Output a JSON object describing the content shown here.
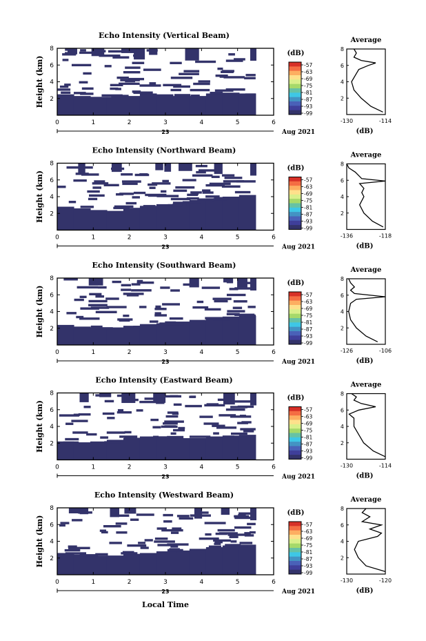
{
  "page": {
    "xlabel": "Local Time",
    "date_label_day": "23",
    "date_label_month": "Aug 2021"
  },
  "colorbar": {
    "unit": "(dB)",
    "tick_labels": [
      "-57",
      "-63",
      "-69",
      "-75",
      "-81",
      "-87",
      "-93",
      "-99"
    ],
    "colors": [
      "#d73027",
      "#f46d43",
      "#fdae61",
      "#fee08b",
      "#d9ef8b",
      "#a6d96a",
      "#66c2a5",
      "#3ec7e6",
      "#4393c3",
      "#4a61b8",
      "#3f3f9a",
      "#33336a"
    ]
  },
  "chart_data": [
    {
      "type": "heatmap",
      "title": "Echo Intensity (Vertical Beam)",
      "xlabel": "",
      "ylabel": "Height (km)",
      "xlim": [
        0,
        6
      ],
      "ylim": [
        0,
        8
      ],
      "x_ticks": [
        0,
        1,
        2,
        3,
        4,
        5,
        6
      ],
      "y_ticks": [
        2,
        4,
        6,
        8
      ],
      "fill_color": "#33336a",
      "data_end_hour": 5.5,
      "solid_layer_top_km": [
        2.5,
        2.3,
        2.2,
        2.2,
        2.3,
        2.6,
        2.5,
        2.3,
        2.3,
        2.6,
        2.7,
        2.6
      ],
      "average_profile": {
        "title": "Average",
        "xlabel": "(dB)",
        "xlim": [
          -130,
          -114
        ],
        "x_ticks": [
          "-130",
          "-114"
        ],
        "height_km": [
          0.3,
          1,
          2,
          3,
          4,
          5,
          5.5,
          6,
          6.3,
          6.6,
          7,
          7.5,
          8
        ],
        "db": [
          -115,
          -120,
          -124,
          -127,
          -128,
          -126,
          -125,
          -121,
          -118,
          -124,
          -127,
          -126,
          -127
        ]
      }
    },
    {
      "type": "heatmap",
      "title": "Echo Intensity (Northward Beam)",
      "xlabel": "",
      "ylabel": "Height (km)",
      "xlim": [
        0,
        6
      ],
      "ylim": [
        0,
        8
      ],
      "x_ticks": [
        0,
        1,
        2,
        3,
        4,
        5,
        6
      ],
      "y_ticks": [
        2,
        4,
        6,
        8
      ],
      "fill_color": "#33336a",
      "data_end_hour": 5.5,
      "solid_layer_top_km": [
        2.8,
        2.6,
        2.4,
        2.3,
        2.6,
        2.9,
        3.1,
        3.4,
        3.6,
        3.8,
        4.0,
        4.2
      ],
      "average_profile": {
        "title": "Average",
        "xlabel": "(dB)",
        "xlim": [
          -136,
          -118
        ],
        "x_ticks": [
          "-136",
          "-118"
        ],
        "height_km": [
          0.3,
          1,
          2,
          3,
          4,
          4.5,
          5,
          5.6,
          5.9,
          6.2,
          7,
          7.5,
          8
        ],
        "db": [
          -119,
          -124,
          -128,
          -130,
          -128,
          -129,
          -128,
          -130,
          -118,
          -129,
          -132,
          -135,
          -136
        ]
      }
    },
    {
      "type": "heatmap",
      "title": "Echo Intensity (Southward Beam)",
      "xlabel": "",
      "ylabel": "Height (km)",
      "xlim": [
        0,
        6
      ],
      "ylim": [
        0,
        8
      ],
      "x_ticks": [
        0,
        1,
        2,
        3,
        4,
        5,
        6
      ],
      "y_ticks": [
        2,
        4,
        6,
        8
      ],
      "fill_color": "#33336a",
      "data_end_hour": 5.5,
      "solid_layer_top_km": [
        2.4,
        2.2,
        2.1,
        2.1,
        2.3,
        2.5,
        2.6,
        2.8,
        3.0,
        3.2,
        3.4,
        3.5
      ],
      "average_profile": {
        "title": "Average",
        "xlabel": "(dB)",
        "xlim": [
          -126,
          -106
        ],
        "x_ticks": [
          "-126",
          "-106"
        ],
        "height_km": [
          0.3,
          1,
          2,
          3,
          4,
          5,
          5.5,
          5.8,
          6.2,
          6.6,
          7,
          7.5,
          8
        ],
        "db": [
          -110,
          -116,
          -121,
          -124,
          -125,
          -124,
          -121,
          -106,
          -122,
          -124,
          -122,
          -124,
          -125
        ]
      }
    },
    {
      "type": "heatmap",
      "title": "Echo Intensity (Eastward Beam)",
      "xlabel": "",
      "ylabel": "Height (km)",
      "xlim": [
        0,
        6
      ],
      "ylim": [
        0,
        8
      ],
      "x_ticks": [
        0,
        1,
        2,
        3,
        4,
        5,
        6
      ],
      "y_ticks": [
        2,
        4,
        6,
        8
      ],
      "fill_color": "#33336a",
      "data_end_hour": 5.5,
      "solid_layer_top_km": [
        2.2,
        2.1,
        2.2,
        2.4,
        2.6,
        2.8,
        2.7,
        2.6,
        2.6,
        2.8,
        2.9,
        3.0
      ],
      "average_profile": {
        "title": "Average",
        "xlabel": "(dB)",
        "xlim": [
          -130,
          -114
        ],
        "x_ticks": [
          "-130",
          "-114"
        ],
        "height_km": [
          0.3,
          1,
          2,
          3,
          4,
          5,
          5.5,
          6,
          6.4,
          6.8,
          7.2,
          7.6,
          8
        ],
        "db": [
          -114,
          -119,
          -123,
          -125,
          -127,
          -127,
          -129,
          -125,
          -118,
          -124,
          -127,
          -126,
          -128
        ]
      }
    },
    {
      "type": "heatmap",
      "title": "Echo Intensity (Westward Beam)",
      "xlabel": "Local Time",
      "ylabel": "Height (km)",
      "xlim": [
        0,
        6
      ],
      "ylim": [
        0,
        8
      ],
      "x_ticks": [
        0,
        1,
        2,
        3,
        4,
        5,
        6
      ],
      "y_ticks": [
        2,
        4,
        6,
        8
      ],
      "fill_color": "#33336a",
      "data_end_hour": 5.5,
      "solid_layer_top_km": [
        2.6,
        2.4,
        2.3,
        2.3,
        2.5,
        2.6,
        2.8,
        2.9,
        3.1,
        3.3,
        3.5,
        3.6
      ],
      "average_profile": {
        "title": "Average",
        "xlabel": "(dB)",
        "xlim": [
          -130,
          -120
        ],
        "x_ticks": [
          "-130",
          "-120"
        ],
        "height_km": [
          0.3,
          1,
          2,
          3,
          4,
          4.6,
          5,
          5.5,
          6,
          6.4,
          7,
          7.5,
          8
        ],
        "db": [
          -120,
          -125,
          -127,
          -128,
          -127,
          -122,
          -121,
          -124,
          -121,
          -126,
          -124,
          -126,
          -125
        ]
      }
    }
  ]
}
